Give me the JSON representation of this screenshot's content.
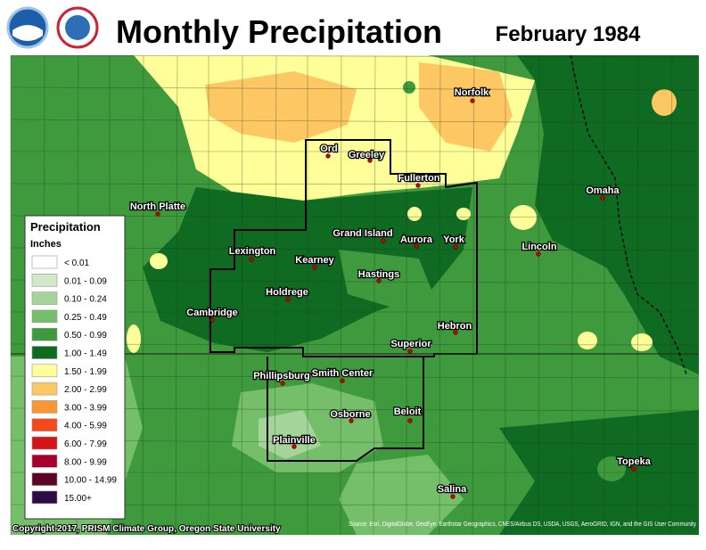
{
  "header": {
    "title": "Monthly Precipitation",
    "period": "February 1984"
  },
  "legend": {
    "title": "Precipitation",
    "units": "Inches",
    "items": [
      {
        "label": "< 0.01",
        "color": "#ffffff"
      },
      {
        "label": "0.01 - 0.09",
        "color": "#cfe9c9"
      },
      {
        "label": "0.10 - 0.24",
        "color": "#a4d49a"
      },
      {
        "label": "0.25 - 0.49",
        "color": "#76bf6a"
      },
      {
        "label": "0.50 - 0.99",
        "color": "#3e9a3c"
      },
      {
        "label": "1.00 - 1.49",
        "color": "#0f6a22"
      },
      {
        "label": "1.50 - 1.99",
        "color": "#ffff99"
      },
      {
        "label": "2.00 - 2.99",
        "color": "#fdc864"
      },
      {
        "label": "3.00 - 3.99",
        "color": "#fb9634"
      },
      {
        "label": "4.00 - 5.99",
        "color": "#f4481e"
      },
      {
        "label": "6.00 - 7.99",
        "color": "#d41518"
      },
      {
        "label": "8.00 - 9.99",
        "color": "#a6002b"
      },
      {
        "label": "10.00 - 14.99",
        "color": "#5e0424"
      },
      {
        "label": "15.00+",
        "color": "#2e0b46"
      }
    ]
  },
  "cities": [
    "North Platte",
    "Ord",
    "Greeley",
    "Fullerton",
    "Norfolk",
    "Omaha",
    "Grand Island",
    "Aurora",
    "York",
    "Lincoln",
    "Lexington",
    "Kearney",
    "Hastings",
    "Holdrege",
    "Cambridge",
    "Hebron",
    "Superior",
    "Phillipsburg",
    "Smith Center",
    "Beloit",
    "Osborne",
    "Plainville",
    "Topeka",
    "Salina"
  ],
  "credits": {
    "copyright": "Copyright 2017, PRISM Climate Group, Oregon State University",
    "source": "Source: Esri, DigitalGlobe, GeoEye, Earthstar Geographics, CNES/Airbus DS, USDA, USGS, AeroGRID, IGN, and the GIS User Community"
  }
}
